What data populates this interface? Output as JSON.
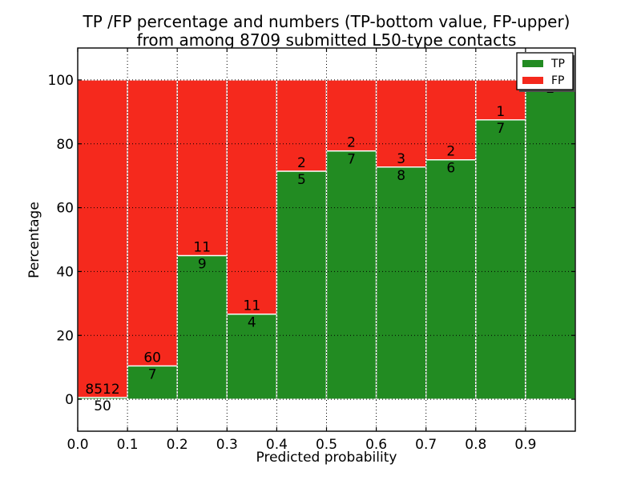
{
  "chart_data": {
    "type": "bar",
    "stacked": true,
    "title_lines": [
      "TP /FP percentage and numbers (TP-bottom value, FP-upper)",
      "from among 8709 submitted L50-type contacts"
    ],
    "xlabel": "Predicted probability",
    "ylabel": "Percentage",
    "xlim": [
      0.0,
      1.0
    ],
    "ylim": [
      -10,
      110
    ],
    "xticks": {
      "values": [
        0.0,
        0.1,
        0.2,
        0.3,
        0.4,
        0.5,
        0.6,
        0.7,
        0.8,
        0.9
      ],
      "labels": [
        "0.0",
        "0.1",
        "0.2",
        "0.3",
        "0.4",
        "0.5",
        "0.6",
        "0.7",
        "0.8",
        "0.9"
      ]
    },
    "yticks": {
      "values": [
        0,
        20,
        40,
        60,
        80,
        100
      ],
      "labels": [
        "0",
        "20",
        "40",
        "60",
        "80",
        "100"
      ]
    },
    "grid": {
      "show": true,
      "style": "dotted",
      "color": "#000000",
      "above_bars": true
    },
    "series": [
      {
        "name": "TP",
        "color": "#228b22",
        "position": "bottom"
      },
      {
        "name": "FP",
        "color": "#f5291d",
        "position": "top"
      }
    ],
    "bar_edge_color": "#ffffff",
    "background": "#ffffff",
    "bins": [
      {
        "range": [
          0.0,
          0.1
        ],
        "tp": 50,
        "fp": 8512,
        "tp_pct": 0.58
      },
      {
        "range": [
          0.1,
          0.2
        ],
        "tp": 7,
        "fp": 60,
        "tp_pct": 10.45
      },
      {
        "range": [
          0.2,
          0.3
        ],
        "tp": 9,
        "fp": 11,
        "tp_pct": 45.0
      },
      {
        "range": [
          0.3,
          0.4
        ],
        "tp": 4,
        "fp": 11,
        "tp_pct": 26.67
      },
      {
        "range": [
          0.4,
          0.5
        ],
        "tp": 5,
        "fp": 2,
        "tp_pct": 71.43
      },
      {
        "range": [
          0.5,
          0.6
        ],
        "tp": 7,
        "fp": 2,
        "tp_pct": 77.78
      },
      {
        "range": [
          0.6,
          0.7
        ],
        "tp": 8,
        "fp": 3,
        "tp_pct": 72.73
      },
      {
        "range": [
          0.7,
          0.8
        ],
        "tp": 6,
        "fp": 2,
        "tp_pct": 75.0
      },
      {
        "range": [
          0.8,
          0.9
        ],
        "tp": 7,
        "fp": 1,
        "tp_pct": 87.5
      },
      {
        "range": [
          0.9,
          1.0
        ],
        "tp": 2,
        "fp": 0,
        "tp_pct": 100.0
      }
    ],
    "legend": {
      "position": "upper right",
      "entries": [
        {
          "label": "TP",
          "color": "#228b22"
        },
        {
          "label": "FP",
          "color": "#f5291d"
        }
      ]
    }
  }
}
